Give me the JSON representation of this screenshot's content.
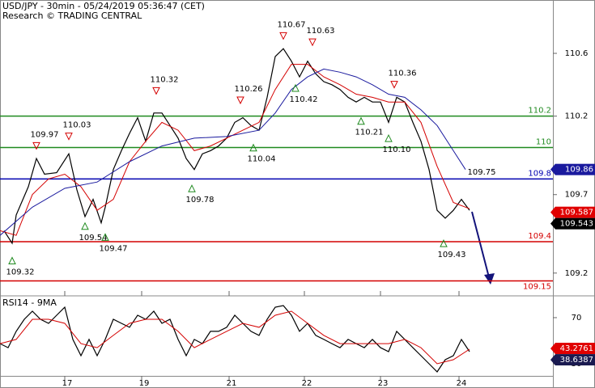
{
  "chart_data": [
    {
      "type": "line",
      "title": "USD/JPY - 30min - 05/24/2019 05:36:47 (CET)",
      "subtitle": "Research © TRADING CENTRAL",
      "xlim": [
        0,
        136.6
      ],
      "ylim": [
        109.06,
        110.94
      ],
      "yticks": [
        109.2,
        109.7,
        110.2,
        110.6
      ],
      "series": [
        {
          "color": "#000000",
          "x": [
            1,
            3,
            4,
            7,
            9,
            11,
            14,
            17,
            19,
            21,
            23,
            25,
            26,
            28,
            30,
            32,
            34,
            36,
            38,
            40,
            42,
            44,
            46,
            48,
            50,
            52,
            54,
            56,
            58,
            60,
            62,
            64,
            66,
            68,
            70,
            72,
            74,
            76,
            78,
            80,
            82,
            84,
            86,
            88,
            90,
            92,
            94,
            96,
            98,
            100,
            102,
            104,
            106,
            108,
            110,
            112,
            114,
            116
          ],
          "values": [
            109.47,
            109.39,
            109.57,
            109.75,
            109.93,
            109.83,
            109.84,
            109.96,
            109.73,
            109.56,
            109.67,
            109.52,
            109.62,
            109.86,
            109.98,
            110.09,
            110.19,
            110.04,
            110.22,
            110.22,
            110.14,
            110.06,
            109.93,
            109.86,
            109.96,
            109.98,
            110.01,
            110.06,
            110.16,
            110.19,
            110.14,
            110.11,
            110.32,
            110.58,
            110.63,
            110.55,
            110.45,
            110.55,
            110.47,
            110.42,
            110.4,
            110.37,
            110.32,
            110.29,
            110.32,
            110.29,
            110.29,
            110.16,
            110.32,
            110.29,
            110.16,
            110.04,
            109.86,
            109.6,
            109.55,
            109.6,
            109.67,
            109.6
          ]
        },
        {
          "color": "#d40000",
          "x": [
            0,
            4,
            8,
            12,
            16,
            20,
            24,
            28,
            32,
            36,
            40,
            44,
            48,
            52,
            56,
            60,
            64,
            68,
            72,
            76,
            80,
            84,
            88,
            92,
            96,
            100,
            104,
            108,
            112,
            116
          ],
          "values": [
            109.47,
            109.44,
            109.7,
            109.8,
            109.83,
            109.75,
            109.6,
            109.67,
            109.91,
            110.04,
            110.16,
            110.11,
            109.98,
            110.01,
            110.06,
            110.11,
            110.16,
            110.37,
            110.53,
            110.53,
            110.45,
            110.4,
            110.34,
            110.32,
            110.29,
            110.29,
            110.16,
            109.88,
            109.65,
            109.61
          ]
        },
        {
          "color": "#1a1a9e",
          "x": [
            0,
            8,
            16,
            24,
            32,
            40,
            48,
            56,
            64,
            68,
            72,
            76,
            80,
            84,
            88,
            92,
            96,
            100,
            104,
            108,
            112,
            115
          ],
          "values": [
            109.44,
            109.62,
            109.74,
            109.78,
            109.91,
            110.01,
            110.06,
            110.07,
            110.11,
            110.22,
            110.37,
            110.45,
            110.5,
            110.48,
            110.45,
            110.4,
            110.34,
            110.32,
            110.24,
            110.14,
            109.98,
            109.86
          ]
        }
      ],
      "levels": [
        {
          "value": 110.2,
          "color": "#1f8a1f"
        },
        {
          "value": 110,
          "color": "#1f8a1f"
        },
        {
          "value": 109.8,
          "color": "#0000b0"
        },
        {
          "value": 109.4,
          "color": "#d40000"
        },
        {
          "value": 109.15,
          "color": "#d40000"
        }
      ],
      "annotations": [
        {
          "x": 9,
          "value": 109.97,
          "marker": "down"
        },
        {
          "x": 17,
          "value": 110.03,
          "marker": "down"
        },
        {
          "x": 38.6,
          "value": 110.32,
          "marker": "down"
        },
        {
          "x": 59.4,
          "value": 110.26,
          "marker": "down"
        },
        {
          "x": 70,
          "value": 110.67,
          "marker": "down"
        },
        {
          "x": 77.2,
          "value": 110.63,
          "marker": "down"
        },
        {
          "x": 97.4,
          "value": 110.36,
          "marker": "down"
        },
        {
          "x": 117,
          "value": 109.75
        },
        {
          "x": 3,
          "value": 109.32,
          "marker": "up"
        },
        {
          "x": 21,
          "value": 109.54,
          "marker": "up"
        },
        {
          "x": 26,
          "value": 109.47,
          "marker": "up"
        },
        {
          "x": 47.4,
          "value": 109.78,
          "marker": "up"
        },
        {
          "x": 62.6,
          "value": 110.04,
          "marker": "up"
        },
        {
          "x": 73,
          "value": 110.42,
          "marker": "up"
        },
        {
          "x": 89.2,
          "value": 110.21,
          "marker": "up"
        },
        {
          "x": 96,
          "value": {
            "value": 110.1,
            "label": "110.10"
          },
          "marker": "up"
        },
        {
          "x": 109.6,
          "value": 109.43,
          "marker": "up"
        }
      ],
      "tags": [
        {
          "value": 109.86,
          "color": "#1a1a9e"
        },
        {
          "value": 109.587,
          "color": "#e00000"
        },
        {
          "value": 109.543,
          "color": "#000000"
        }
      ]
    },
    {
      "type": "line",
      "title": "RSI14 - 9MA",
      "xlim": [
        0,
        136.6
      ],
      "ylim": [
        19.5,
        88.2
      ],
      "yticks": [
        30,
        70
      ],
      "xticks": [
        {
          "value": 16,
          "label": "17"
        },
        {
          "value": 35,
          "label": "19"
        },
        {
          "value": 56.6,
          "label": "21"
        },
        {
          "value": 75.2,
          "label": "22"
        },
        {
          "value": 94,
          "label": "23"
        },
        {
          "value": 113.4,
          "label": "24"
        }
      ],
      "series": [
        {
          "color": "#000000",
          "x": [
            0,
            2,
            4,
            6,
            8,
            10,
            12,
            14,
            16,
            18,
            20,
            22,
            24,
            26,
            28,
            30,
            32,
            34,
            36,
            38,
            40,
            42,
            44,
            46,
            48,
            50,
            52,
            54,
            56,
            58,
            60,
            62,
            64,
            66,
            68,
            70,
            72,
            74,
            76,
            78,
            80,
            82,
            84,
            86,
            88,
            90,
            92,
            94,
            96,
            98,
            100,
            102,
            104,
            106,
            108,
            110,
            112,
            114,
            116
          ],
          "values": [
            47.5,
            44,
            58.1,
            68.6,
            75.6,
            68.6,
            65.1,
            72.1,
            79.1,
            51.1,
            37,
            51.1,
            37,
            51.1,
            68.6,
            65.1,
            61.6,
            72.1,
            68.6,
            75.6,
            65.1,
            68.6,
            51.1,
            37,
            51.1,
            47.5,
            58.1,
            58.1,
            61.6,
            72.1,
            65.1,
            58.1,
            54.6,
            68.6,
            79.1,
            80.5,
            72.1,
            58.1,
            65.1,
            54.6,
            51.1,
            47.5,
            44,
            51.1,
            47.5,
            44,
            51.1,
            44,
            40.5,
            58.1,
            51.1,
            44,
            37,
            30,
            23,
            33.5,
            37,
            51.1,
            40.5
          ]
        },
        {
          "color": "#d40000",
          "x": [
            0,
            4,
            8,
            12,
            16,
            20,
            24,
            28,
            32,
            36,
            40,
            44,
            48,
            52,
            56,
            60,
            64,
            68,
            72,
            76,
            80,
            84,
            88,
            92,
            96,
            100,
            104,
            108,
            112,
            116
          ],
          "values": [
            47.5,
            51.1,
            68.6,
            68.6,
            65.1,
            47.5,
            44,
            54.6,
            65.1,
            68.6,
            68.6,
            58.1,
            44,
            51.1,
            58.1,
            65.1,
            61.6,
            72.1,
            75.6,
            65.1,
            54.6,
            47.5,
            47.5,
            47.5,
            47.5,
            51.1,
            44,
            30,
            33.5,
            42.6
          ]
        }
      ],
      "tags": [
        {
          "value": 43.2761,
          "color": "#e00000"
        },
        {
          "value": 38.6387,
          "color": "#1a1a50"
        }
      ]
    }
  ]
}
